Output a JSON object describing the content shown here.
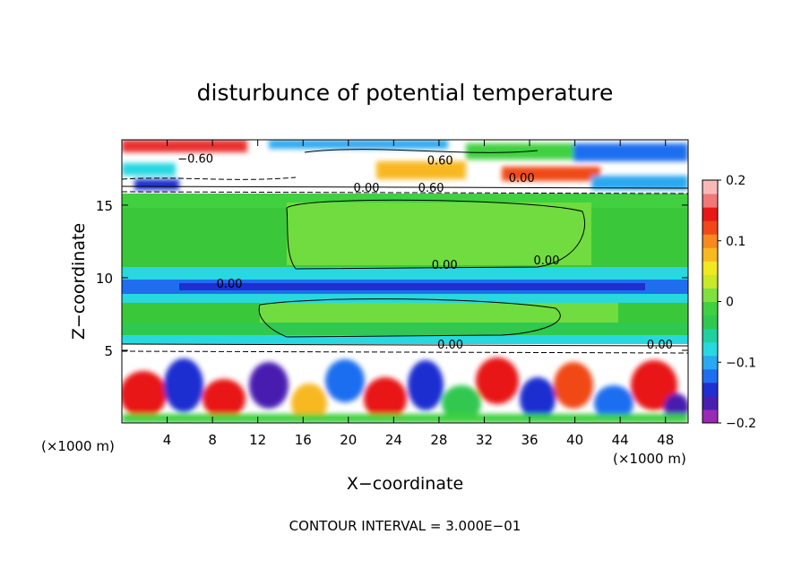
{
  "chart_data": {
    "type": "heatmap",
    "title": "disturbunce of potential temperature",
    "xlabel": "X−coordinate",
    "ylabel": "Z−coordinate",
    "x_unit_left": "(×1000 m)",
    "x_unit_right": "(×1000 m)",
    "footer": "CONTOUR INTERVAL = 3.000E−01",
    "xlim": [
      0,
      50
    ],
    "ylim": [
      0,
      19.5
    ],
    "x_ticks": [
      4,
      8,
      12,
      16,
      20,
      24,
      28,
      32,
      36,
      40,
      44,
      48
    ],
    "x_tick_labels": [
      "4",
      "8",
      "12",
      "16",
      "20",
      "24",
      "28",
      "32",
      "36",
      "40",
      "44",
      "48"
    ],
    "y_ticks": [
      5,
      10,
      15
    ],
    "y_tick_labels": [
      "5",
      "10",
      "15"
    ],
    "colorbar": {
      "range": [
        -0.2,
        0.2
      ],
      "ticks": [
        0.2,
        0.1,
        0,
        -0.1,
        -0.2
      ],
      "tick_labels": [
        "0.2",
        "0.1",
        "0",
        "−0.1",
        "−0.2"
      ],
      "colors": [
        "#9a2ab4",
        "#4a1fb0",
        "#1f2fd0",
        "#1f6ef0",
        "#2aa8f0",
        "#28d8e0",
        "#20d0a0",
        "#30c850",
        "#40d040",
        "#80e040",
        "#c8e828",
        "#f0e820",
        "#f8b820",
        "#f88820",
        "#f04818",
        "#e81818",
        "#f07878",
        "#f8b8b8"
      ]
    },
    "contour_labels": [
      {
        "text": "−0.60",
        "x": 6.5,
        "z": 18.1
      },
      {
        "text": "0.60",
        "x": 28.1,
        "z": 18.0
      },
      {
        "text": "0.00",
        "x": 21.6,
        "z": 16.1
      },
      {
        "text": "0.60",
        "x": 27.3,
        "z": 16.1
      },
      {
        "text": "0.00",
        "x": 35.3,
        "z": 16.8
      },
      {
        "text": "0.00",
        "x": 28.5,
        "z": 10.8
      },
      {
        "text": "0.00",
        "x": 37.5,
        "z": 11.1
      },
      {
        "text": "0.00",
        "x": 9.5,
        "z": 9.5
      },
      {
        "text": "0.00",
        "x": 29.0,
        "z": 5.3
      },
      {
        "text": "0.00",
        "x": 47.5,
        "z": 5.3
      }
    ]
  }
}
